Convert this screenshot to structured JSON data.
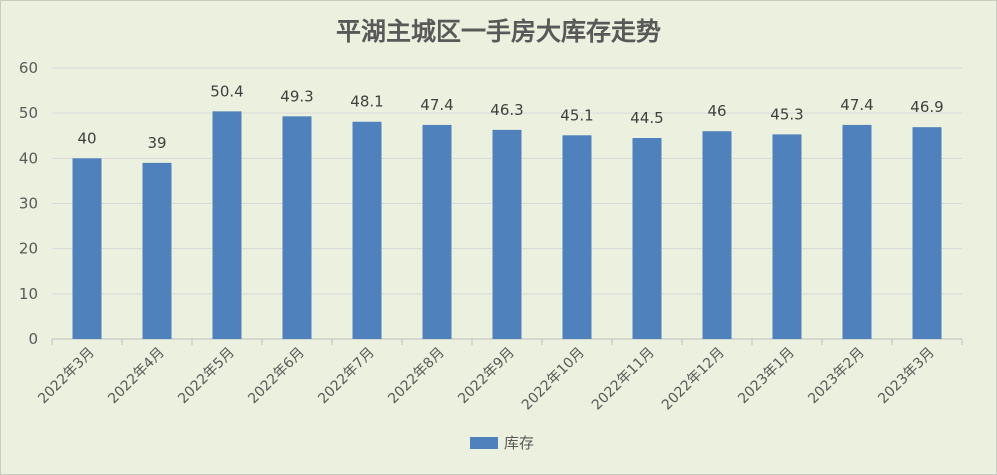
{
  "chart_data": {
    "type": "bar",
    "title": "平湖主城区一手房大库存走势",
    "categories": [
      "2022年3月",
      "2022年4月",
      "2022年5月",
      "2022年6月",
      "2022年7月",
      "2022年8月",
      "2022年9月",
      "2022年10月",
      "2022年11月",
      "2022年12月",
      "2023年1月",
      "2023年2月",
      "2023年3月"
    ],
    "series": [
      {
        "name": "库存",
        "values": [
          40,
          39,
          50.4,
          49.3,
          48.1,
          47.4,
          46.3,
          45.1,
          44.5,
          46,
          45.3,
          47.4,
          46.9
        ]
      }
    ],
    "ylim": [
      0,
      60
    ],
    "yticks": [
      0,
      10,
      20,
      30,
      40,
      50,
      60
    ],
    "grid": true,
    "legend": "bottom",
    "colors": {
      "bar": "#4f81bd",
      "background": "#ebf1de",
      "grid": "#d9d9d9",
      "text": "#595959"
    }
  }
}
